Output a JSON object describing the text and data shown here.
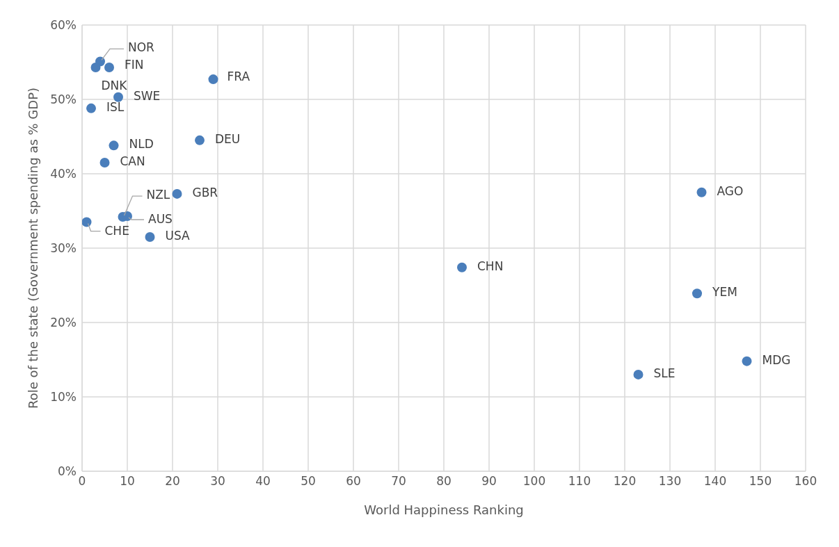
{
  "chart_data": {
    "type": "scatter",
    "xlabel": "World Happiness Ranking",
    "ylabel": "Role of the state (Government spending as % GDP)",
    "x": [
      4,
      3,
      6,
      29,
      8,
      2,
      7,
      26,
      5,
      21,
      137,
      9,
      10,
      1,
      15,
      84,
      136,
      147,
      123
    ],
    "values": [
      55.1,
      54.3,
      54.3,
      52.7,
      50.3,
      48.8,
      43.8,
      44.5,
      41.5,
      37.3,
      37.5,
      34.2,
      34.3,
      33.5,
      31.5,
      27.4,
      23.9,
      14.8,
      13.0
    ],
    "color": "#4a7ebb",
    "marker": "circle",
    "grid": true,
    "xlim": [
      0,
      160
    ],
    "xticks": [
      0,
      10,
      20,
      30,
      40,
      50,
      60,
      70,
      80,
      90,
      100,
      110,
      120,
      130,
      140,
      150,
      160
    ],
    "ylim": [
      0,
      60
    ],
    "yticks": [
      {
        "value": 0,
        "label": "0%"
      },
      {
        "value": 10,
        "label": "10%"
      },
      {
        "value": 20,
        "label": "20%"
      },
      {
        "value": 30,
        "label": "30%"
      },
      {
        "value": 40,
        "label": "40%"
      },
      {
        "value": 50,
        "label": "50%"
      },
      {
        "value": 60,
        "label": "60%"
      }
    ],
    "annotations": [
      {
        "text": "NOR",
        "x": 4,
        "y": 55.1
      },
      {
        "text": "DNK",
        "x": 3,
        "y": 54.3
      },
      {
        "text": "FIN",
        "x": 6,
        "y": 54.3
      },
      {
        "text": "FRA",
        "x": 29,
        "y": 52.7
      },
      {
        "text": "SWE",
        "x": 8,
        "y": 50.3
      },
      {
        "text": "ISL",
        "x": 2,
        "y": 48.8
      },
      {
        "text": "NLD",
        "x": 7,
        "y": 43.8
      },
      {
        "text": "DEU",
        "x": 26,
        "y": 44.5
      },
      {
        "text": "CAN",
        "x": 5,
        "y": 41.5
      },
      {
        "text": "GBR",
        "x": 21,
        "y": 37.3
      },
      {
        "text": "AGO",
        "x": 137,
        "y": 37.5
      },
      {
        "text": "NZL",
        "x": 9,
        "y": 34.2
      },
      {
        "text": "AUS",
        "x": 10,
        "y": 34.3
      },
      {
        "text": "CHE",
        "x": 1,
        "y": 33.5
      },
      {
        "text": "USA",
        "x": 15,
        "y": 31.5
      },
      {
        "text": "CHN",
        "x": 84,
        "y": 27.4
      },
      {
        "text": "YEM",
        "x": 136,
        "y": 23.9
      },
      {
        "text": "MDG",
        "x": 147,
        "y": 14.8
      },
      {
        "text": "SLE",
        "x": 123,
        "y": 13.0
      }
    ]
  }
}
